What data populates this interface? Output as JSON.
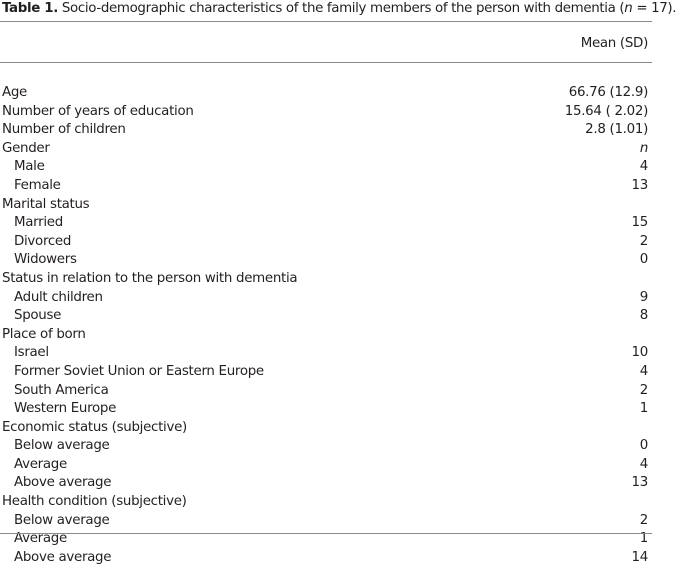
{
  "caption": {
    "label": "Table 1.",
    "text": "Socio-demographic characteristics of the family members of the person with dementia (",
    "n": "n",
    "rest": " = 17)."
  },
  "header": {
    "col2": "Mean (SD)"
  },
  "rows": [
    {
      "label": "Age",
      "value": "66.76 (12.9)",
      "sub": false
    },
    {
      "label": "Number of years of education",
      "value": "15.64 ( 2.02)",
      "sub": false
    },
    {
      "label": "Number of children",
      "value": "2.8 (1.01)",
      "sub": false
    },
    {
      "label": "Gender",
      "value": "n",
      "sub": false,
      "italic": true
    },
    {
      "label": "Male",
      "value": "4",
      "sub": true
    },
    {
      "label": "Female",
      "value": "13",
      "sub": true
    },
    {
      "label": "Marital status",
      "value": "",
      "sub": false
    },
    {
      "label": "Married",
      "value": "15",
      "sub": true
    },
    {
      "label": "Divorced",
      "value": "2",
      "sub": true
    },
    {
      "label": "Widowers",
      "value": "0",
      "sub": true
    },
    {
      "label": "Status in relation to the person with dementia",
      "value": "",
      "sub": false
    },
    {
      "label": "Adult children",
      "value": "9",
      "sub": true
    },
    {
      "label": "Spouse",
      "value": "8",
      "sub": true
    },
    {
      "label": "Place of born",
      "value": "",
      "sub": false
    },
    {
      "label": "Israel",
      "value": "10",
      "sub": true
    },
    {
      "label": "Former Soviet Union or Eastern Europe",
      "value": "4",
      "sub": true
    },
    {
      "label": "South America",
      "value": "2",
      "sub": true
    },
    {
      "label": "Western Europe",
      "value": "1",
      "sub": true
    },
    {
      "label": "Economic status (subjective)",
      "value": "",
      "sub": false
    },
    {
      "label": "Below average",
      "value": "0",
      "sub": true
    },
    {
      "label": "Average",
      "value": "4",
      "sub": true
    },
    {
      "label": "Above average",
      "value": "13",
      "sub": true
    },
    {
      "label": "Health condition (subjective)",
      "value": "",
      "sub": false
    },
    {
      "label": "Below average",
      "value": "2",
      "sub": true
    },
    {
      "label": "Average",
      "value": "1",
      "sub": true
    },
    {
      "label": "Above average",
      "value": "14",
      "sub": true
    }
  ]
}
